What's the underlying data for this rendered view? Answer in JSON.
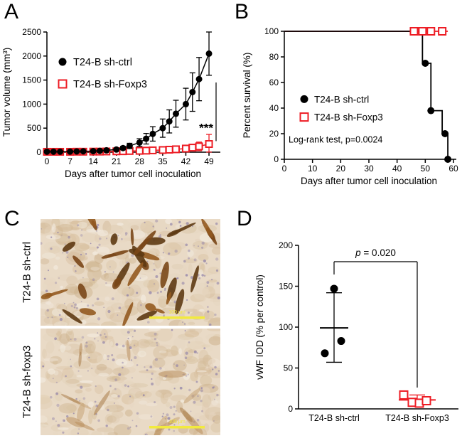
{
  "colors": {
    "black": "#000000",
    "red": "#ed1c24",
    "yellow": "#f2ea3e"
  },
  "panels": {
    "a": {
      "letter": "A"
    },
    "b": {
      "letter": "B"
    },
    "c": {
      "letter": "C",
      "images": [
        {
          "label": "T24-B sh-ctrl",
          "scale_text": "100 μm"
        },
        {
          "label": "T24-B sh-foxp3",
          "scale_text": "100 μm"
        }
      ]
    },
    "d": {
      "letter": "D"
    }
  },
  "chart_data": [
    {
      "id": "tumor-volume",
      "type": "line",
      "xlabel": "Days after tumor cell inoculation",
      "ylabel": "Tumor volume (mm³)",
      "xlim": [
        0,
        52
      ],
      "xticks": [
        0,
        7,
        14,
        21,
        28,
        35,
        42,
        49
      ],
      "ylim": [
        0,
        2500
      ],
      "yticks": [
        0,
        500,
        1000,
        1500,
        2000,
        2500
      ],
      "significance": "***",
      "series": [
        {
          "name": "T24-B sh-ctrl",
          "marker": "circle",
          "color": "#000000",
          "x": [
            0,
            2,
            4,
            7,
            9,
            11,
            14,
            16,
            18,
            21,
            23,
            25,
            28,
            30,
            32,
            35,
            37,
            39,
            42,
            44,
            46,
            49
          ],
          "y": [
            10,
            10,
            10,
            12,
            15,
            18,
            22,
            28,
            38,
            55,
            85,
            130,
            200,
            280,
            380,
            500,
            640,
            800,
            1000,
            1250,
            1520,
            2050
          ],
          "err": [
            0,
            0,
            0,
            0,
            0,
            0,
            0,
            0,
            0,
            20,
            35,
            55,
            80,
            110,
            150,
            190,
            240,
            280,
            330,
            400,
            450,
            450
          ]
        },
        {
          "name": "T24-B sh-Foxp3",
          "marker": "square",
          "color": "#ed1c24",
          "x": [
            0,
            2,
            4,
            7,
            9,
            11,
            14,
            16,
            18,
            21,
            23,
            25,
            28,
            30,
            32,
            35,
            37,
            39,
            42,
            44,
            46,
            49
          ],
          "y": [
            8,
            8,
            8,
            8,
            10,
            10,
            12,
            12,
            15,
            18,
            20,
            25,
            28,
            32,
            38,
            45,
            52,
            60,
            75,
            95,
            120,
            170
          ],
          "err": [
            0,
            0,
            0,
            0,
            0,
            0,
            0,
            0,
            0,
            0,
            0,
            0,
            0,
            0,
            0,
            0,
            0,
            25,
            40,
            60,
            90,
            200
          ]
        }
      ]
    },
    {
      "id": "survival",
      "type": "step",
      "xlabel": "Days after tumor cell inoculation",
      "ylabel": "Percent survival (%)",
      "xlim": [
        0,
        60
      ],
      "xticks": [
        0,
        10,
        20,
        30,
        40,
        50,
        60
      ],
      "ylim": [
        0,
        100
      ],
      "yticks": [
        0,
        20,
        40,
        60,
        80,
        100
      ],
      "stat_text": "Log-rank test, p=0.0024",
      "series": [
        {
          "name": "T24-B sh-ctrl",
          "marker": "circle",
          "color": "#000000",
          "steps": [
            [
              0,
              100
            ],
            [
              49,
              100
            ],
            [
              49,
              75
            ],
            [
              52,
              75
            ],
            [
              52,
              38
            ],
            [
              56,
              38
            ],
            [
              56,
              20
            ],
            [
              58,
              20
            ],
            [
              58,
              0
            ]
          ],
          "marker_points": [
            [
              50,
              75
            ],
            [
              52,
              38
            ],
            [
              57,
              20
            ],
            [
              58,
              0
            ]
          ]
        },
        {
          "name": "T24-B sh-Foxp3",
          "marker": "square",
          "color": "#ed1c24",
          "steps": [
            [
              0,
              100
            ],
            [
              58,
              100
            ]
          ],
          "marker_points": [
            [
              46,
              100
            ],
            [
              49,
              100
            ],
            [
              52,
              100
            ],
            [
              56,
              100
            ]
          ]
        }
      ]
    },
    {
      "id": "vwf-iod",
      "type": "scatter",
      "ylabel": "vWF IOD (% per control)",
      "ylim": [
        0,
        200
      ],
      "yticks": [
        0,
        50,
        100,
        150,
        200
      ],
      "p_label": "p = 0.020",
      "groups": [
        {
          "name": "T24-B sh-ctrl",
          "marker": "circle",
          "color": "#000000",
          "points": [
            147,
            68,
            83
          ],
          "jitter": [
            0,
            -13,
            10
          ],
          "mean": 99,
          "err_lo": 57,
          "err_hi": 142
        },
        {
          "name": "T24-B sh-Foxp3",
          "marker": "square",
          "color": "#ed1c24",
          "points": [
            17,
            8,
            7,
            10
          ],
          "jitter": [
            -19,
            -7,
            3,
            13
          ],
          "mean": 11,
          "err_lo": 5,
          "err_hi": 17
        }
      ]
    }
  ],
  "ihc": {
    "bg": "#e9dac6",
    "tissue": [
      "#e0cdb2",
      "#d6bd9a",
      "#e6d6c0",
      "#cdb28d"
    ],
    "nuclei": "#8d7fa8",
    "scalebar_color": "#f2ea3e",
    "images": [
      {
        "stain_colors": [
          "#7a4718",
          "#935a20",
          "#5e3a13"
        ],
        "stain_count": 26,
        "stain_opacity": 0.9
      },
      {
        "stain_colors": [
          "#b9905e",
          "#c7a476",
          "#a97e4a"
        ],
        "stain_count": 11,
        "stain_opacity": 0.55
      }
    ]
  }
}
